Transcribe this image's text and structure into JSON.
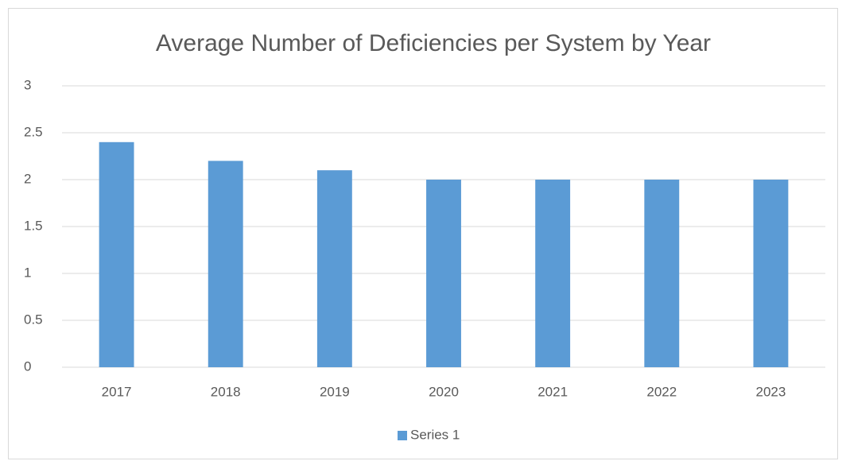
{
  "chart_data": {
    "type": "bar",
    "title": "Average Number of Deficiencies per System by Year",
    "categories": [
      "2017",
      "2018",
      "2019",
      "2020",
      "2021",
      "2022",
      "2023"
    ],
    "series": [
      {
        "name": "Series 1",
        "color": "#5b9bd5",
        "values": [
          2.4,
          2.2,
          2.1,
          2,
          2,
          2,
          2
        ]
      }
    ],
    "ylim": [
      0,
      3
    ],
    "yticks": [
      0,
      0.5,
      1,
      1.5,
      2,
      2.5,
      3
    ],
    "grid": true,
    "legend": "bottom"
  }
}
